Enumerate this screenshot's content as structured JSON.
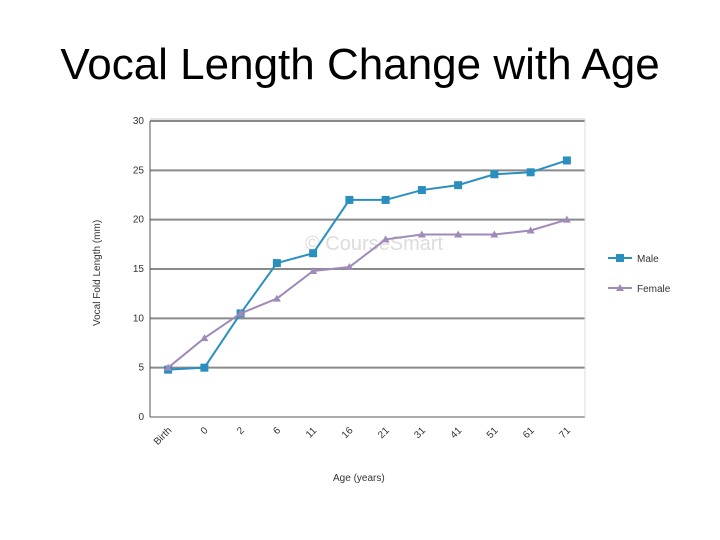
{
  "slide": {
    "title": "Vocal Length Change with Age"
  },
  "chart_data": {
    "type": "line",
    "watermark": "© CourseSmart",
    "xlabel": "Age (years)",
    "ylabel": "Vocal Fold Length (mm)",
    "ylim": [
      0,
      30
    ],
    "yticks": [
      0,
      5,
      10,
      15,
      20,
      25,
      30
    ],
    "categories": [
      "Birth",
      "0",
      "2",
      "6",
      "11",
      "16",
      "21",
      "31",
      "41",
      "51",
      "61",
      "71"
    ],
    "grid": true,
    "legend_position": "right",
    "series": [
      {
        "name": "Male",
        "color": "#2a8fbf",
        "marker": "square",
        "x": [
          0.5,
          1.5,
          2.5,
          3.5,
          4.5,
          5.5,
          6.5,
          7.5,
          8.5,
          9.5,
          10.5,
          11.5
        ],
        "values": [
          4.8,
          5.0,
          10.5,
          15.6,
          16.6,
          22.0,
          22.0,
          23.0,
          23.5,
          24.6,
          24.8,
          26.0
        ]
      },
      {
        "name": "Female",
        "color": "#a08ab8",
        "marker": "triangle",
        "x": [
          0.5,
          1.5,
          2.5,
          3.5,
          4.5,
          5.5,
          6.5,
          7.5,
          8.5,
          9.5,
          10.5,
          11.5
        ],
        "values": [
          5.0,
          8.0,
          10.5,
          12.0,
          14.8,
          15.2,
          18.0,
          18.5,
          18.5,
          18.5,
          18.9,
          20.0
        ]
      }
    ]
  }
}
